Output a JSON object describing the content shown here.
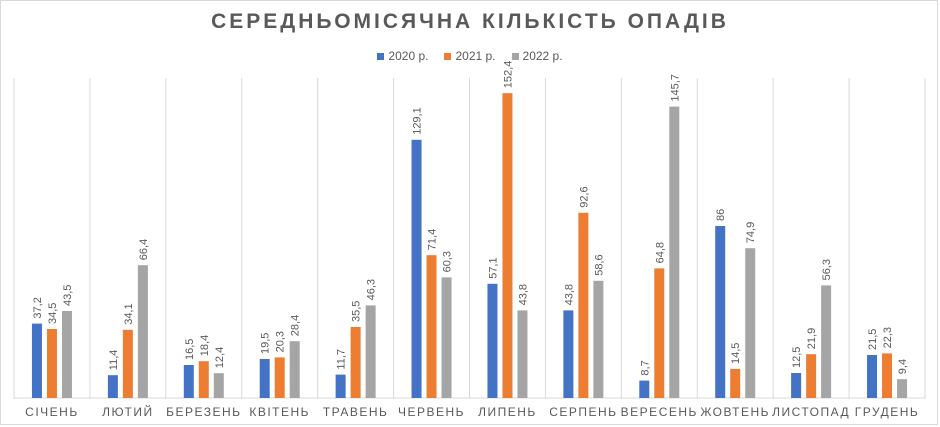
{
  "chart_data": {
    "type": "bar",
    "title": "СЕРЕДНЬОМІСЯЧНА КІЛЬКІСТЬ ОПАДІВ",
    "categories": [
      "СІЧЕНЬ",
      "ЛЮТИЙ",
      "БЕРЕЗЕНЬ",
      "КВІТЕНЬ",
      "ТРАВЕНЬ",
      "ЧЕРВЕНЬ",
      "ЛИПЕНЬ",
      "СЕРПЕНЬ",
      "ВЕРЕСЕНЬ",
      "ЖОВТЕНЬ",
      "ЛИСТОПАД",
      "ГРУДЕНЬ"
    ],
    "series": [
      {
        "name": "2020 р.",
        "color": "#4472c4",
        "values": [
          37.2,
          11.4,
          16.5,
          19.5,
          11.7,
          129.1,
          57.1,
          43.8,
          8.7,
          86,
          12.5,
          21.5
        ],
        "labels": [
          "37,2",
          "11,4",
          "16,5",
          "19,5",
          "11,7",
          "129,1",
          "57,1",
          "43,8",
          "8,7",
          "86",
          "12,5",
          "21,5"
        ]
      },
      {
        "name": "2021 р.",
        "color": "#ed7d31",
        "values": [
          34.5,
          34.1,
          18.4,
          20.3,
          35.5,
          71.4,
          152.4,
          92.6,
          64.8,
          14.5,
          21.9,
          22.3
        ],
        "labels": [
          "34,5",
          "34,1",
          "18,4",
          "20,3",
          "35,5",
          "71,4",
          "152,4",
          "92,6",
          "64,8",
          "14,5",
          "21,9",
          "22,3"
        ]
      },
      {
        "name": "2022 р.",
        "color": "#a5a5a5",
        "values": [
          43.5,
          66.4,
          12.4,
          28.4,
          46.3,
          60.3,
          43.8,
          58.6,
          145.7,
          74.9,
          56.3,
          9.4
        ],
        "labels": [
          "43,5",
          "66,4",
          "12,4",
          "28,4",
          "46,3",
          "60,3",
          "43,8",
          "58,6",
          "145,7",
          "74,9",
          "56,3",
          "9,4"
        ]
      }
    ],
    "ylim": [
      0,
      160
    ],
    "grid": "vertical category separators",
    "legend_position": "top"
  }
}
